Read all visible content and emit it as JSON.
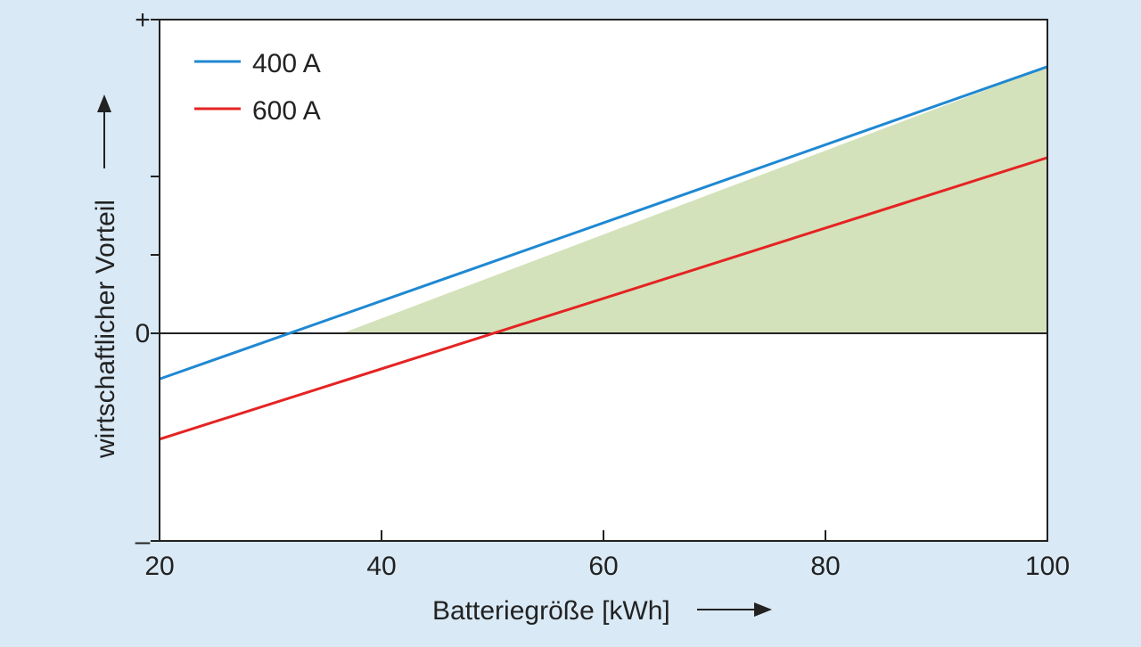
{
  "chart_data": {
    "type": "line",
    "xlabel": "Batteriegröße [kWh]",
    "ylabel": "wirtschaftlicher Vorteil",
    "xlim": [
      20,
      100
    ],
    "ylim": [
      -1,
      1
    ],
    "xticks": [
      20,
      40,
      60,
      80,
      100
    ],
    "yticks": [
      {
        "value": 1,
        "label": "+"
      },
      {
        "value": 0.5,
        "label": ""
      },
      {
        "value": 0,
        "label": "0"
      },
      {
        "value": -1,
        "label": "–"
      }
    ],
    "y_minor_ticks": [
      0.5,
      0.25
    ],
    "legend_position": "top-left",
    "grid": false,
    "series": [
      {
        "name": "400 A",
        "color": "#1f88d2",
        "x": [
          20,
          100
        ],
        "y": [
          -0.22,
          0.85
        ]
      },
      {
        "name": "600 A",
        "color": "#e52323",
        "x": [
          20,
          100
        ],
        "y": [
          -0.51,
          0.56
        ]
      }
    ],
    "shaded_region": {
      "description": "between 400 A line and zero for positive values",
      "color": "#d3e2ba"
    },
    "zero_line_color": "#222222",
    "background_color": "#d9e9f5",
    "plot_background": "#ffffff"
  }
}
